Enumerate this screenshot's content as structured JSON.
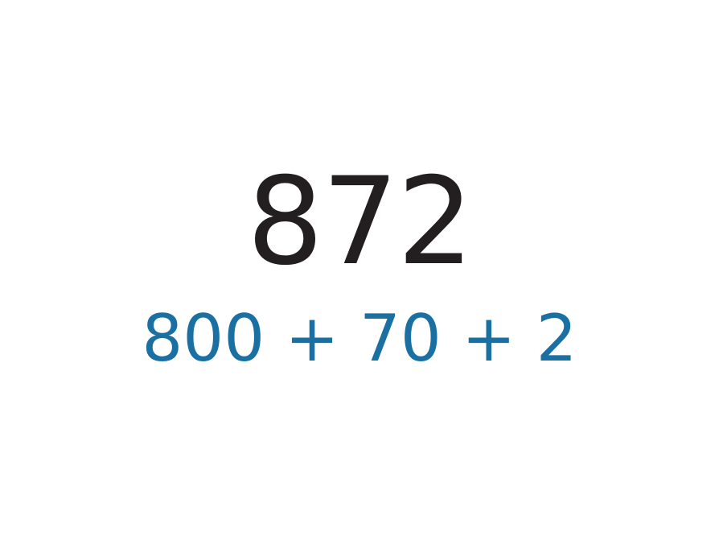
{
  "number": {
    "value": "872",
    "color": "#231f20"
  },
  "expansion": {
    "text": "800 + 70 + 2",
    "color": "#1a6fa3"
  }
}
